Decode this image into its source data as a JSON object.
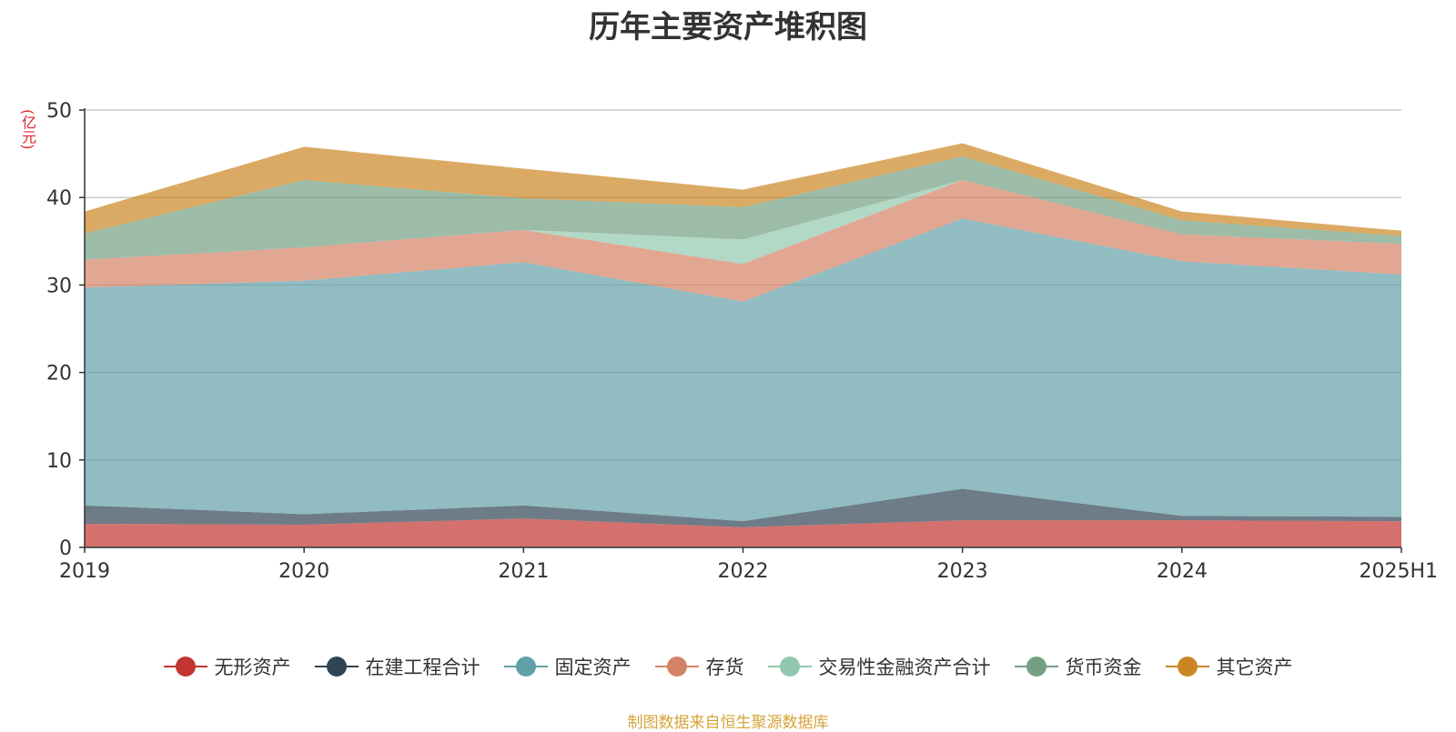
{
  "chart_data": {
    "type": "area",
    "stacked": true,
    "title": "历年主要资产堆积图",
    "unit_label": "(亿元)",
    "categories": [
      "2019",
      "2020",
      "2021",
      "2022",
      "2023",
      "2024",
      "2025H1"
    ],
    "ylim": [
      0,
      50
    ],
    "yticks": [
      0,
      10,
      20,
      30,
      40,
      50
    ],
    "grid": true,
    "legend_position": "bottom",
    "series": [
      {
        "name": "无形资产",
        "color": "#c23531",
        "values": [
          2.7,
          2.6,
          3.3,
          2.3,
          3.1,
          3.1,
          3.0
        ]
      },
      {
        "name": "在建工程合计",
        "color": "#2f4554",
        "values": [
          2.1,
          1.2,
          1.5,
          0.7,
          3.6,
          0.5,
          0.5
        ]
      },
      {
        "name": "固定资产",
        "color": "#61a0a8",
        "values": [
          24.9,
          26.7,
          27.8,
          25.1,
          30.9,
          29.1,
          27.7
        ]
      },
      {
        "name": "存货",
        "color": "#d48265",
        "values": [
          3.2,
          3.8,
          3.7,
          4.3,
          4.4,
          3.1,
          3.5
        ]
      },
      {
        "name": "交易性金融资产合计",
        "color": "#91c7ae",
        "values": [
          0,
          0,
          0,
          2.8,
          0,
          0,
          0
        ]
      },
      {
        "name": "货币资金",
        "color": "#749f83",
        "values": [
          3.0,
          7.7,
          3.6,
          3.7,
          2.7,
          1.6,
          0.9
        ]
      },
      {
        "name": "其它资产",
        "color": "#ca8622",
        "values": [
          2.5,
          3.8,
          3.4,
          2.0,
          1.5,
          1.0,
          0.6
        ]
      }
    ]
  },
  "source_note": "制图数据来自恒生聚源数据库"
}
